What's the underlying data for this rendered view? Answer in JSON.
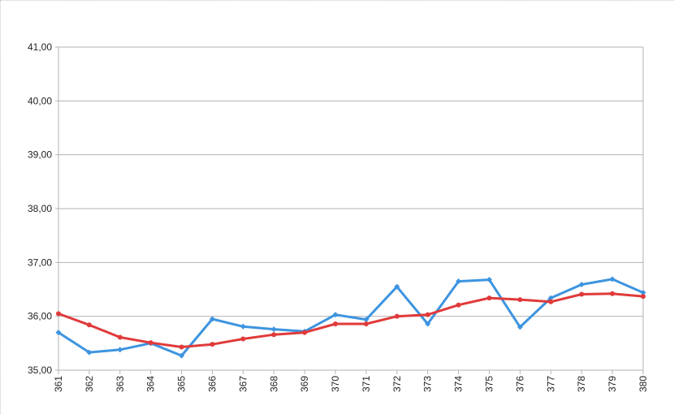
{
  "chart_data": {
    "type": "line",
    "title": "",
    "xlabel": "",
    "ylabel": "",
    "categories": [
      "361",
      "362",
      "363",
      "364",
      "365",
      "366",
      "367",
      "368",
      "369",
      "370",
      "371",
      "372",
      "373",
      "374",
      "375",
      "376",
      "377",
      "378",
      "379",
      "380"
    ],
    "ylim": [
      35,
      41
    ],
    "yticks": [
      "35,00",
      "36,00",
      "37,00",
      "38,00",
      "39,00",
      "40,00",
      "41,00"
    ],
    "ytick_values": [
      35,
      36,
      37,
      38,
      39,
      40,
      41
    ],
    "grid": true,
    "legend": "none",
    "series": [
      {
        "color": "#3d94e0",
        "marker": "diamond",
        "values": [
          35.7,
          35.33,
          35.38,
          35.5,
          35.27,
          35.95,
          35.81,
          35.76,
          35.72,
          36.03,
          35.94,
          36.55,
          35.86,
          36.65,
          36.68,
          35.8,
          36.34,
          36.59,
          36.69,
          36.44
        ]
      },
      {
        "color": "#e03a3a",
        "marker": "circle",
        "values": [
          36.05,
          35.84,
          35.61,
          35.51,
          35.43,
          35.48,
          35.58,
          35.66,
          35.7,
          35.86,
          35.86,
          36.0,
          36.03,
          36.21,
          36.34,
          36.31,
          36.27,
          36.41,
          36.42,
          36.37
        ]
      }
    ]
  }
}
